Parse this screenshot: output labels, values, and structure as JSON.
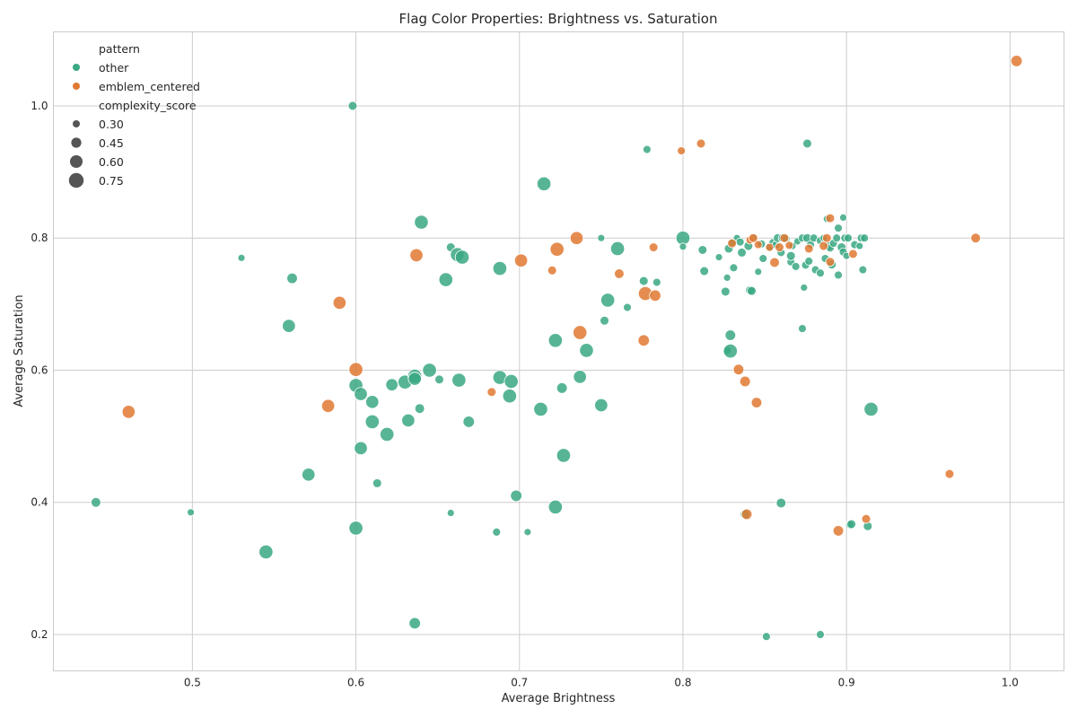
{
  "chart_data": {
    "type": "scatter",
    "title": "Flag Color Properties: Brightness vs. Saturation",
    "xlabel": "Average Brightness",
    "ylabel": "Average Saturation",
    "xlim": [
      0.415,
      1.033
    ],
    "ylim": [
      0.145,
      1.112
    ],
    "xticks": [
      {
        "value": 0.5,
        "label": "0.5"
      },
      {
        "value": 0.6,
        "label": "0.6"
      },
      {
        "value": 0.7,
        "label": "0.7"
      },
      {
        "value": 0.8,
        "label": "0.8"
      },
      {
        "value": 0.9,
        "label": "0.9"
      },
      {
        "value": 1.0,
        "label": "1.0"
      }
    ],
    "yticks": [
      {
        "value": 0.2,
        "label": "0.2"
      },
      {
        "value": 0.4,
        "label": "0.4"
      },
      {
        "value": 0.6,
        "label": "0.6"
      },
      {
        "value": 0.8,
        "label": "0.8"
      },
      {
        "value": 1.0,
        "label": "1.0"
      }
    ],
    "grid": true,
    "legend": {
      "placement": "top-left",
      "hue_title": "pattern",
      "size_title": "complexity_score",
      "size_entries": [
        {
          "value": 0.3,
          "label": "0.30"
        },
        {
          "value": 0.45,
          "label": "0.45"
        },
        {
          "value": 0.6,
          "label": "0.60"
        },
        {
          "value": 0.75,
          "label": "0.75"
        }
      ]
    },
    "series": [
      {
        "name": "other",
        "color": "#3aa882",
        "points": [
          [
            0.441,
            0.4,
            0.45
          ],
          [
            0.499,
            0.385,
            0.3
          ],
          [
            0.53,
            0.77,
            0.3
          ],
          [
            0.545,
            0.325,
            0.7
          ],
          [
            0.559,
            0.667,
            0.65
          ],
          [
            0.561,
            0.739,
            0.5
          ],
          [
            0.571,
            0.442,
            0.65
          ],
          [
            0.598,
            1.0,
            0.4
          ],
          [
            0.6,
            0.361,
            0.7
          ],
          [
            0.6,
            0.577,
            0.7
          ],
          [
            0.603,
            0.564,
            0.65
          ],
          [
            0.603,
            0.482,
            0.65
          ],
          [
            0.61,
            0.552,
            0.65
          ],
          [
            0.61,
            0.522,
            0.7
          ],
          [
            0.613,
            0.429,
            0.4
          ],
          [
            0.619,
            0.503,
            0.7
          ],
          [
            0.622,
            0.578,
            0.6
          ],
          [
            0.63,
            0.582,
            0.7
          ],
          [
            0.632,
            0.524,
            0.65
          ],
          [
            0.636,
            0.591,
            0.7
          ],
          [
            0.636,
            0.587,
            0.65
          ],
          [
            0.636,
            0.217,
            0.55
          ],
          [
            0.639,
            0.542,
            0.45
          ],
          [
            0.64,
            0.824,
            0.7
          ],
          [
            0.645,
            0.6,
            0.7
          ],
          [
            0.651,
            0.586,
            0.4
          ],
          [
            0.655,
            0.737,
            0.7
          ],
          [
            0.658,
            0.786,
            0.4
          ],
          [
            0.658,
            0.384,
            0.3
          ],
          [
            0.662,
            0.775,
            0.7
          ],
          [
            0.663,
            0.585,
            0.7
          ],
          [
            0.665,
            0.771,
            0.7
          ],
          [
            0.669,
            0.522,
            0.55
          ],
          [
            0.686,
            0.355,
            0.35
          ],
          [
            0.688,
            0.754,
            0.7
          ],
          [
            0.688,
            0.589,
            0.7
          ],
          [
            0.694,
            0.561,
            0.7
          ],
          [
            0.695,
            0.583,
            0.7
          ],
          [
            0.698,
            0.41,
            0.55
          ],
          [
            0.705,
            0.355,
            0.3
          ],
          [
            0.713,
            0.541,
            0.7
          ],
          [
            0.715,
            0.882,
            0.7
          ],
          [
            0.722,
            0.645,
            0.7
          ],
          [
            0.722,
            0.393,
            0.7
          ],
          [
            0.726,
            0.573,
            0.5
          ],
          [
            0.727,
            0.471,
            0.7
          ],
          [
            0.737,
            0.59,
            0.65
          ],
          [
            0.741,
            0.63,
            0.7
          ],
          [
            0.75,
            0.547,
            0.65
          ],
          [
            0.75,
            0.8,
            0.3
          ],
          [
            0.752,
            0.675,
            0.4
          ],
          [
            0.754,
            0.706,
            0.7
          ],
          [
            0.76,
            0.784,
            0.7
          ],
          [
            0.766,
            0.695,
            0.35
          ],
          [
            0.776,
            0.735,
            0.4
          ],
          [
            0.778,
            0.934,
            0.35
          ],
          [
            0.784,
            0.733,
            0.35
          ],
          [
            0.8,
            0.8,
            0.7
          ],
          [
            0.8,
            0.787,
            0.3
          ],
          [
            0.812,
            0.782,
            0.4
          ],
          [
            0.813,
            0.75,
            0.4
          ],
          [
            0.822,
            0.771,
            0.3
          ],
          [
            0.826,
            0.719,
            0.4
          ],
          [
            0.827,
            0.63,
            0.35
          ],
          [
            0.827,
            0.74,
            0.3
          ],
          [
            0.828,
            0.784,
            0.4
          ],
          [
            0.829,
            0.653,
            0.5
          ],
          [
            0.829,
            0.629,
            0.7
          ],
          [
            0.83,
            0.793,
            0.35
          ],
          [
            0.831,
            0.755,
            0.35
          ],
          [
            0.833,
            0.8,
            0.3
          ],
          [
            0.835,
            0.794,
            0.35
          ],
          [
            0.836,
            0.778,
            0.4
          ],
          [
            0.838,
            0.382,
            0.45
          ],
          [
            0.84,
            0.788,
            0.4
          ],
          [
            0.841,
            0.721,
            0.4
          ],
          [
            0.842,
            0.72,
            0.4
          ],
          [
            0.843,
            0.8,
            0.3
          ],
          [
            0.846,
            0.749,
            0.3
          ],
          [
            0.848,
            0.791,
            0.35
          ],
          [
            0.849,
            0.769,
            0.35
          ],
          [
            0.851,
            0.197,
            0.35
          ],
          [
            0.853,
            0.786,
            0.4
          ],
          [
            0.855,
            0.793,
            0.35
          ],
          [
            0.857,
            0.79,
            0.35
          ],
          [
            0.858,
            0.8,
            0.4
          ],
          [
            0.86,
            0.778,
            0.35
          ],
          [
            0.86,
            0.399,
            0.45
          ],
          [
            0.861,
            0.8,
            0.4
          ],
          [
            0.863,
            0.799,
            0.35
          ],
          [
            0.866,
            0.764,
            0.35
          ],
          [
            0.866,
            0.773,
            0.4
          ],
          [
            0.867,
            0.788,
            0.3
          ],
          [
            0.869,
            0.757,
            0.35
          ],
          [
            0.87,
            0.795,
            0.3
          ],
          [
            0.873,
            0.8,
            0.35
          ],
          [
            0.873,
            0.663,
            0.35
          ],
          [
            0.874,
            0.725,
            0.3
          ],
          [
            0.875,
            0.759,
            0.35
          ],
          [
            0.876,
            0.8,
            0.4
          ],
          [
            0.876,
            0.943,
            0.4
          ],
          [
            0.877,
            0.765,
            0.35
          ],
          [
            0.878,
            0.79,
            0.35
          ],
          [
            0.88,
            0.8,
            0.35
          ],
          [
            0.881,
            0.752,
            0.35
          ],
          [
            0.884,
            0.796,
            0.35
          ],
          [
            0.884,
            0.747,
            0.35
          ],
          [
            0.884,
            0.2,
            0.35
          ],
          [
            0.886,
            0.8,
            0.3
          ],
          [
            0.887,
            0.769,
            0.35
          ],
          [
            0.888,
            0.829,
            0.3
          ],
          [
            0.889,
            0.788,
            0.4
          ],
          [
            0.89,
            0.785,
            0.35
          ],
          [
            0.891,
            0.76,
            0.4
          ],
          [
            0.892,
            0.792,
            0.35
          ],
          [
            0.894,
            0.8,
            0.35
          ],
          [
            0.895,
            0.815,
            0.35
          ],
          [
            0.895,
            0.744,
            0.35
          ],
          [
            0.897,
            0.786,
            0.4
          ],
          [
            0.898,
            0.831,
            0.3
          ],
          [
            0.898,
            0.779,
            0.35
          ],
          [
            0.899,
            0.8,
            0.35
          ],
          [
            0.9,
            0.773,
            0.3
          ],
          [
            0.901,
            0.8,
            0.35
          ],
          [
            0.902,
            0.366,
            0.35
          ],
          [
            0.903,
            0.367,
            0.4
          ],
          [
            0.905,
            0.79,
            0.35
          ],
          [
            0.908,
            0.788,
            0.3
          ],
          [
            0.909,
            0.8,
            0.35
          ],
          [
            0.91,
            0.752,
            0.35
          ],
          [
            0.911,
            0.8,
            0.35
          ],
          [
            0.913,
            0.364,
            0.4
          ],
          [
            0.915,
            0.541,
            0.7
          ]
        ]
      },
      {
        "name": "emblem_centered",
        "color": "#e07933",
        "points": [
          [
            0.461,
            0.537,
            0.65
          ],
          [
            0.583,
            0.546,
            0.65
          ],
          [
            0.59,
            0.702,
            0.65
          ],
          [
            0.6,
            0.601,
            0.7
          ],
          [
            0.637,
            0.774,
            0.65
          ],
          [
            0.683,
            0.567,
            0.4
          ],
          [
            0.701,
            0.766,
            0.65
          ],
          [
            0.72,
            0.751,
            0.4
          ],
          [
            0.723,
            0.783,
            0.7
          ],
          [
            0.735,
            0.8,
            0.65
          ],
          [
            0.737,
            0.657,
            0.7
          ],
          [
            0.761,
            0.746,
            0.45
          ],
          [
            0.776,
            0.645,
            0.55
          ],
          [
            0.777,
            0.716,
            0.7
          ],
          [
            0.782,
            0.786,
            0.4
          ],
          [
            0.783,
            0.713,
            0.55
          ],
          [
            0.799,
            0.932,
            0.35
          ],
          [
            0.811,
            0.943,
            0.4
          ],
          [
            0.83,
            0.792,
            0.4
          ],
          [
            0.834,
            0.601,
            0.5
          ],
          [
            0.838,
            0.583,
            0.5
          ],
          [
            0.839,
            0.382,
            0.5
          ],
          [
            0.841,
            0.797,
            0.35
          ],
          [
            0.843,
            0.8,
            0.4
          ],
          [
            0.845,
            0.551,
            0.5
          ],
          [
            0.846,
            0.79,
            0.35
          ],
          [
            0.853,
            0.786,
            0.35
          ],
          [
            0.856,
            0.763,
            0.45
          ],
          [
            0.859,
            0.786,
            0.4
          ],
          [
            0.862,
            0.8,
            0.4
          ],
          [
            0.865,
            0.789,
            0.35
          ],
          [
            0.877,
            0.784,
            0.4
          ],
          [
            0.886,
            0.788,
            0.4
          ],
          [
            0.888,
            0.8,
            0.4
          ],
          [
            0.89,
            0.764,
            0.4
          ],
          [
            0.89,
            0.83,
            0.4
          ],
          [
            0.895,
            0.357,
            0.5
          ],
          [
            0.904,
            0.776,
            0.4
          ],
          [
            0.912,
            0.375,
            0.4
          ],
          [
            0.963,
            0.443,
            0.4
          ],
          [
            0.979,
            0.8,
            0.45
          ],
          [
            1.004,
            1.068,
            0.55
          ]
        ]
      }
    ]
  }
}
